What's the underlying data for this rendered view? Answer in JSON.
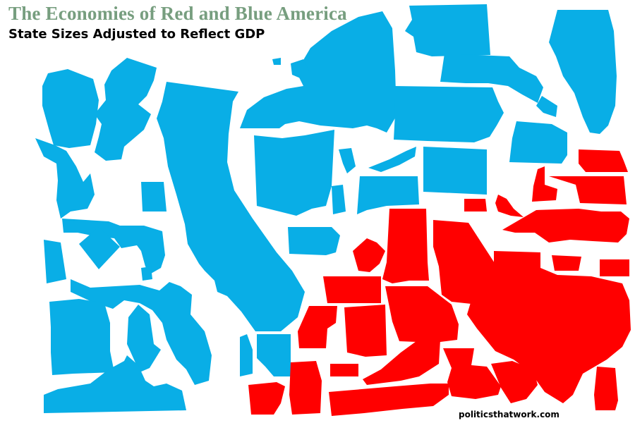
{
  "header": {
    "title": "The Economies of Red and Blue America",
    "subtitle": "State Sizes Adjusted to Reflect GDP"
  },
  "footer": {
    "credit": "politicsthatwork.com"
  },
  "colors": {
    "title": "#779e7f",
    "blue_states": "#09aee6",
    "red_states": "#ff0000",
    "background": "#ffffff"
  }
}
